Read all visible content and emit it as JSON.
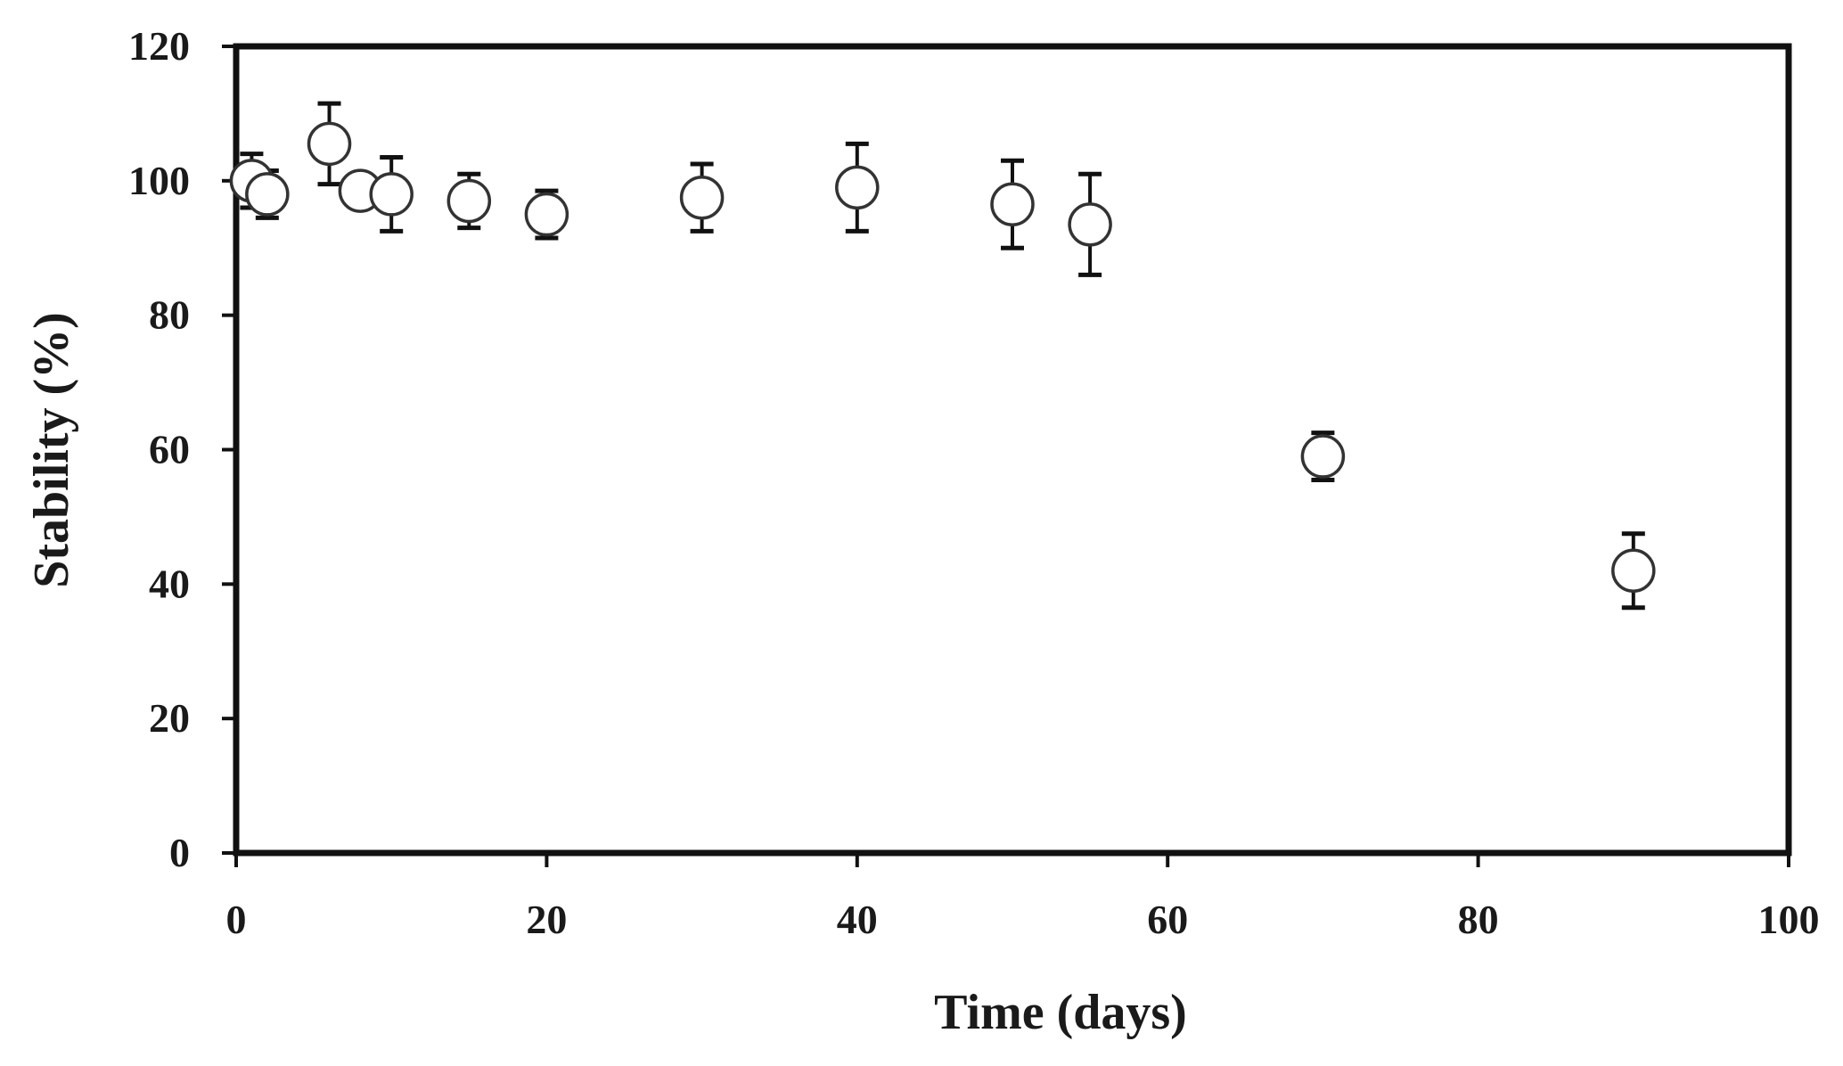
{
  "chart_data": {
    "type": "scatter",
    "title": "",
    "xlabel": "Time (days)",
    "ylabel": "Stability (%)",
    "xlim": [
      0,
      100
    ],
    "ylim": [
      0,
      120
    ],
    "xticks": [
      0,
      20,
      40,
      60,
      80,
      100
    ],
    "yticks": [
      0,
      20,
      40,
      60,
      80,
      100,
      120
    ],
    "xtick_labels": [
      "0",
      "20",
      "40",
      "60",
      "80",
      "100"
    ],
    "ytick_labels": [
      "0",
      "20",
      "40",
      "60",
      "80",
      "100",
      "120"
    ],
    "grid": false,
    "legend": "none",
    "marker": "open-circle",
    "points": [
      {
        "x": 1,
        "y": 100,
        "err": 4
      },
      {
        "x": 2,
        "y": 98,
        "err": 3.5
      },
      {
        "x": 6,
        "y": 105.5,
        "err": 6
      },
      {
        "x": 8,
        "y": 98.5,
        "err": 0
      },
      {
        "x": 10,
        "y": 98,
        "err": 5.5
      },
      {
        "x": 15,
        "y": 97,
        "err": 4
      },
      {
        "x": 20,
        "y": 95,
        "err": 3.5
      },
      {
        "x": 30,
        "y": 97.5,
        "err": 5
      },
      {
        "x": 40,
        "y": 99,
        "err": 6.5
      },
      {
        "x": 50,
        "y": 96.5,
        "err": 6.5
      },
      {
        "x": 55,
        "y": 93.5,
        "err": 7.5
      },
      {
        "x": 70,
        "y": 59,
        "err": 3.5
      },
      {
        "x": 90,
        "y": 42,
        "err": 5.5
      }
    ]
  }
}
